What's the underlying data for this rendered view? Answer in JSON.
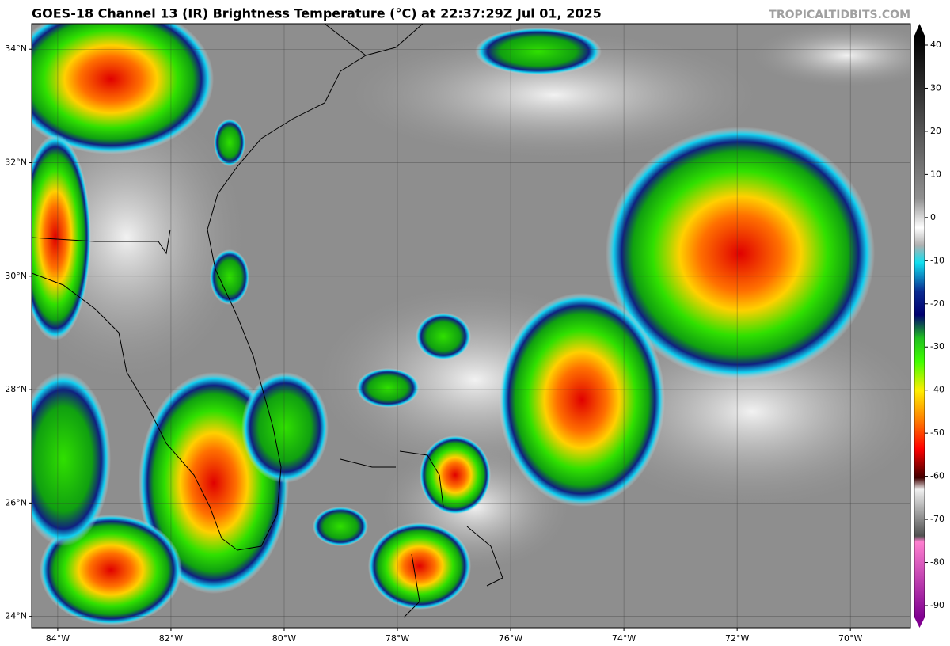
{
  "map": {
    "title": "GOES-18 Channel 13 (IR) Brightness Temperature (°C) at 22:37:29Z Jul 01, 2025",
    "credit": "TROPICALTIDBITS.COM",
    "lat_ticks": [
      {
        "value": 24,
        "label": "24°N"
      },
      {
        "value": 26,
        "label": "26°N"
      },
      {
        "value": 28,
        "label": "28°N"
      },
      {
        "value": 30,
        "label": "30°N"
      },
      {
        "value": 32,
        "label": "32°N"
      },
      {
        "value": 34,
        "label": "34°N"
      }
    ],
    "lon_ticks": [
      {
        "value": -84,
        "label": "84°W"
      },
      {
        "value": -82,
        "label": "82°W"
      },
      {
        "value": -80,
        "label": "80°W"
      },
      {
        "value": -78,
        "label": "78°W"
      },
      {
        "value": -76,
        "label": "76°W"
      },
      {
        "value": -74,
        "label": "74°W"
      },
      {
        "value": -72,
        "label": "72°W"
      },
      {
        "value": -70,
        "label": "70°W"
      }
    ],
    "colorbar": {
      "lim": [
        -90,
        40
      ],
      "ticks": [
        40,
        30,
        20,
        10,
        0,
        -10,
        -20,
        -30,
        -40,
        -50,
        -60,
        -70,
        -80,
        -90
      ]
    }
  }
}
